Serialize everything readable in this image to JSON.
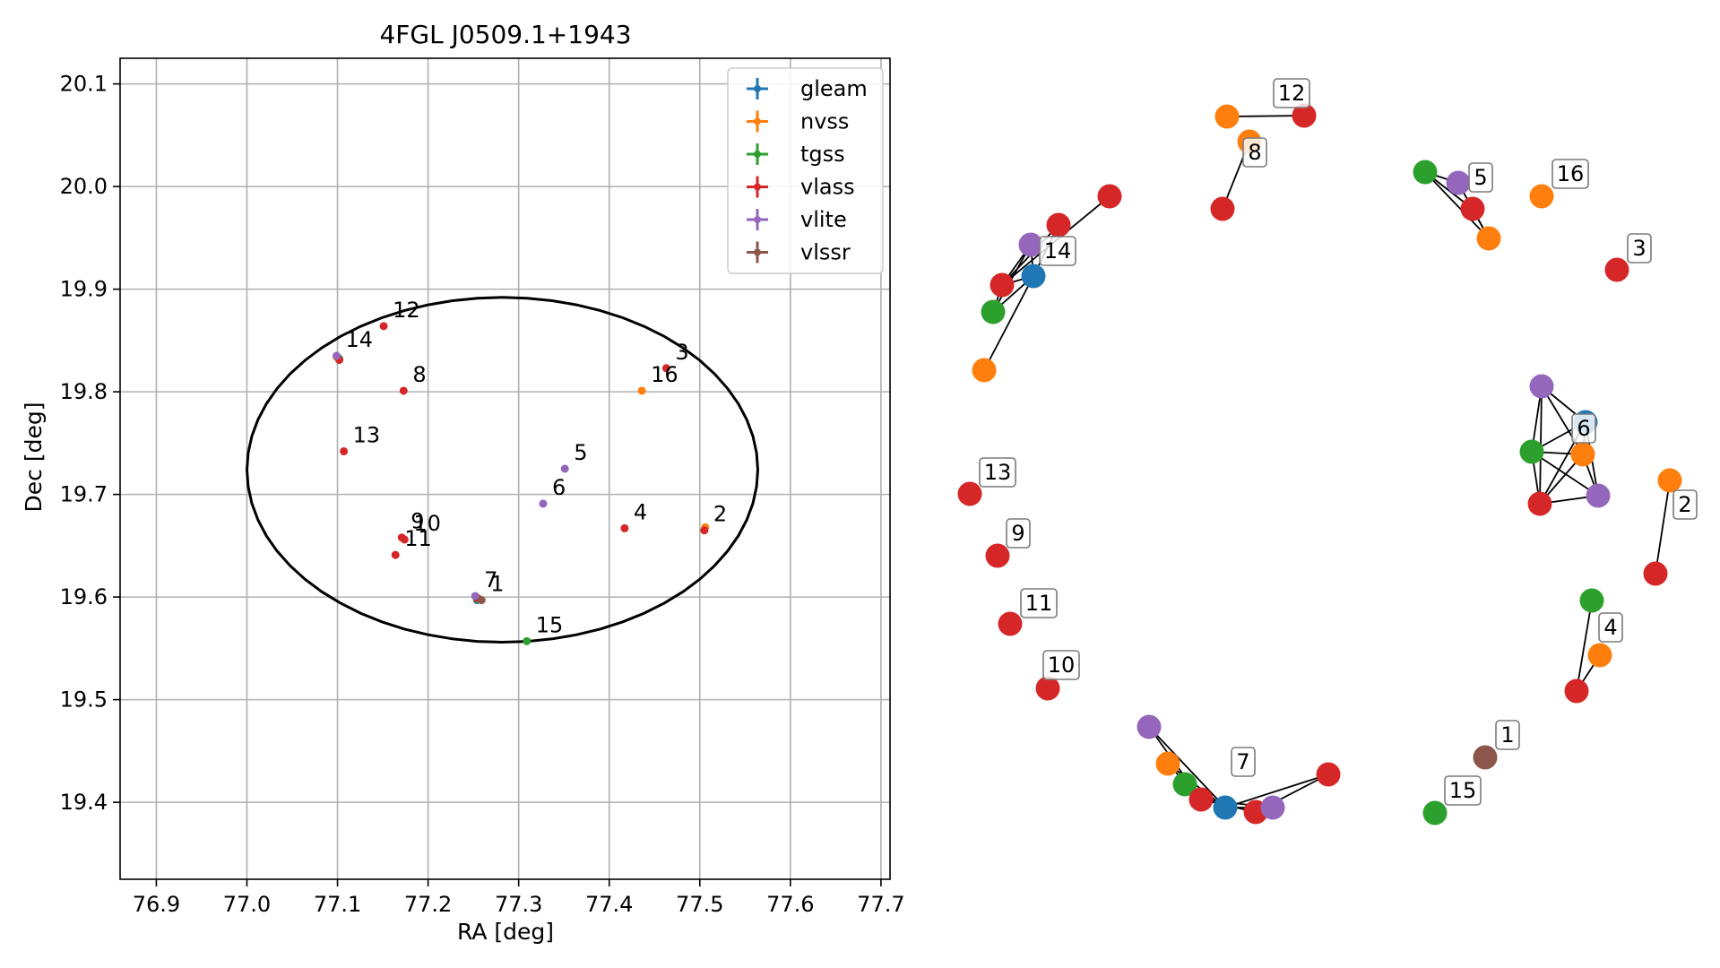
{
  "chart_data": [
    {
      "type": "scatter",
      "title": "4FGL J0509.1+1943",
      "xlabel": "RA [deg]",
      "ylabel": "Dec [deg]",
      "xlim": [
        76.86,
        77.71
      ],
      "ylim": [
        19.325,
        20.125
      ],
      "x_ticks": [
        "76.9",
        "77.0",
        "77.1",
        "77.2",
        "77.3",
        "77.4",
        "77.5",
        "77.6",
        "77.7"
      ],
      "y_ticks": [
        "19.4",
        "19.5",
        "19.6",
        "19.7",
        "19.8",
        "19.9",
        "20.0",
        "20.1"
      ],
      "grid": true,
      "legend_position": "top-right",
      "ellipse": {
        "center": [
          77.282,
          19.724
        ],
        "semi_axis_ra": 0.282,
        "semi_axis_dec": 0.168
      },
      "series": [
        {
          "name": "gleam",
          "color": "#1f77b4",
          "points": [
            [
              77.102,
              19.832,
              ""
            ],
            [
              77.254,
              19.597,
              ""
            ]
          ]
        },
        {
          "name": "nvss",
          "color": "#ff7f0e",
          "points": [
            [
              77.436,
              19.801,
              "16"
            ],
            [
              77.506,
              19.668,
              ""
            ],
            [
              77.099,
              19.834,
              ""
            ],
            [
              77.255,
              19.599,
              ""
            ]
          ]
        },
        {
          "name": "tgss",
          "color": "#2ca02c",
          "points": [
            [
              77.309,
              19.557,
              "15"
            ],
            [
              77.101,
              19.833,
              ""
            ],
            [
              77.254,
              19.598,
              ""
            ]
          ]
        },
        {
          "name": "vlass",
          "color": "#d62728",
          "points": [
            [
              77.151,
              19.864,
              "12"
            ],
            [
              77.173,
              19.801,
              "8"
            ],
            [
              77.107,
              19.742,
              "13"
            ],
            [
              77.171,
              19.658,
              "9"
            ],
            [
              77.164,
              19.641,
              "11"
            ],
            [
              77.174,
              19.656,
              "10"
            ],
            [
              77.417,
              19.667,
              "4"
            ],
            [
              77.505,
              19.665,
              "2"
            ],
            [
              77.463,
              19.823,
              "3"
            ],
            [
              77.254,
              19.599,
              ""
            ],
            [
              77.102,
              19.831,
              ""
            ]
          ]
        },
        {
          "name": "vlite",
          "color": "#9467bd",
          "points": [
            [
              77.099,
              19.835,
              "14"
            ],
            [
              77.351,
              19.725,
              "5"
            ],
            [
              77.327,
              19.691,
              "6"
            ],
            [
              77.252,
              19.601,
              "7"
            ]
          ]
        },
        {
          "name": "vlssr",
          "color": "#8c564b",
          "points": [
            [
              77.259,
              19.597,
              "1"
            ]
          ]
        }
      ]
    },
    {
      "type": "network",
      "node_colors": {
        "gleam": "#1f77b4",
        "nvss": "#ff7f0e",
        "tgss": "#2ca02c",
        "vlass": "#d62728",
        "vlite": "#9467bd",
        "vlssr": "#8c564b"
      },
      "labels": [
        "12",
        "8",
        "5",
        "16",
        "3",
        "14",
        "6",
        "13",
        "2",
        "9",
        "11",
        "4",
        "10",
        "1",
        "7",
        "15"
      ]
    }
  ]
}
